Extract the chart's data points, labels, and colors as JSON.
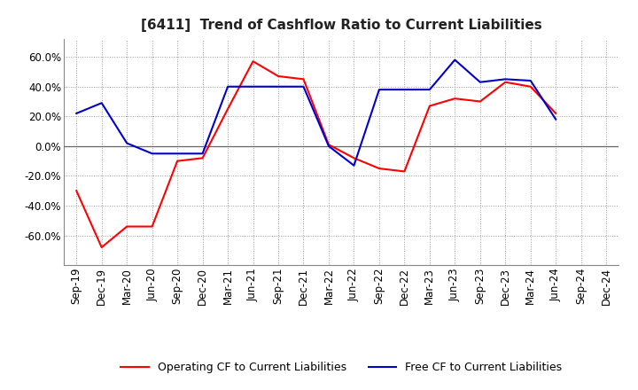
{
  "title": "[6411]  Trend of Cashflow Ratio to Current Liabilities",
  "x_labels": [
    "Sep-19",
    "Dec-19",
    "Mar-20",
    "Jun-20",
    "Sep-20",
    "Dec-20",
    "Mar-21",
    "Jun-21",
    "Sep-21",
    "Dec-21",
    "Mar-22",
    "Jun-22",
    "Sep-22",
    "Dec-22",
    "Mar-23",
    "Jun-23",
    "Sep-23",
    "Dec-23",
    "Mar-24",
    "Jun-24",
    "Sep-24",
    "Dec-24"
  ],
  "operating_cf": [
    -30.0,
    -68.0,
    -54.0,
    -54.0,
    -10.0,
    -8.0,
    25.0,
    57.0,
    47.0,
    45.0,
    1.0,
    -8.0,
    -15.0,
    -17.0,
    27.0,
    32.0,
    30.0,
    43.0,
    40.0,
    22.0,
    null,
    null
  ],
  "free_cf": [
    22.0,
    29.0,
    2.0,
    -5.0,
    -5.0,
    -5.0,
    40.0,
    40.0,
    40.0,
    40.0,
    0.0,
    -13.0,
    38.0,
    38.0,
    38.0,
    58.0,
    43.0,
    45.0,
    44.0,
    18.0,
    null,
    null
  ],
  "ylim": [
    -80.0,
    72.0
  ],
  "yticks": [
    -60.0,
    -40.0,
    -20.0,
    0.0,
    20.0,
    40.0,
    60.0
  ],
  "operating_color": "#ff0000",
  "free_color": "#0000cc",
  "background_color": "#ffffff",
  "grid_color": "#999999",
  "legend_operating": "Operating CF to Current Liabilities",
  "legend_free": "Free CF to Current Liabilities",
  "title_fontsize": 11,
  "tick_fontsize": 8.5
}
